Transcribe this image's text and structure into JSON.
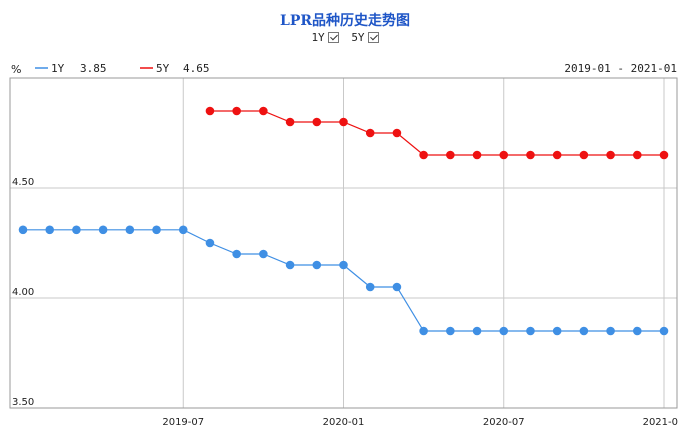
{
  "title": "LPR品种历史走势图",
  "toggles": [
    {
      "label": "1Y",
      "checked": true
    },
    {
      "label": "5Y",
      "checked": true
    }
  ],
  "unit_label": "%",
  "legend": [
    {
      "name": "1Y",
      "value": "3.85",
      "color": "#3f8fe4"
    },
    {
      "name": "5Y",
      "value": "4.65",
      "color": "#ee1111"
    }
  ],
  "date_range": "2019-01 - 2021-01",
  "chart_data": {
    "type": "line",
    "ylim": [
      3.5,
      5.0
    ],
    "y_ticks": [
      {
        "value": 3.5,
        "label": "3.50"
      },
      {
        "value": 4.0,
        "label": "4.00"
      },
      {
        "value": 4.5,
        "label": "4.50"
      }
    ],
    "x_range": [
      "2019-01",
      "2021-01"
    ],
    "x_ticks": [
      {
        "x": "2019-07",
        "label": "2019-07"
      },
      {
        "x": "2020-01",
        "label": "2020-01"
      },
      {
        "x": "2020-07",
        "label": "2020-07"
      },
      {
        "x": "2021-01",
        "label": "2021-0"
      }
    ],
    "grid": true,
    "series": [
      {
        "name": "1Y",
        "color": "#3f8fe4",
        "points": [
          {
            "x": "2019-01",
            "y": 4.31
          },
          {
            "x": "2019-02",
            "y": 4.31
          },
          {
            "x": "2019-03",
            "y": 4.31
          },
          {
            "x": "2019-04",
            "y": 4.31
          },
          {
            "x": "2019-05",
            "y": 4.31
          },
          {
            "x": "2019-06",
            "y": 4.31
          },
          {
            "x": "2019-07",
            "y": 4.31
          },
          {
            "x": "2019-08",
            "y": 4.25
          },
          {
            "x": "2019-09",
            "y": 4.2
          },
          {
            "x": "2019-10",
            "y": 4.2
          },
          {
            "x": "2019-11",
            "y": 4.15
          },
          {
            "x": "2019-12",
            "y": 4.15
          },
          {
            "x": "2020-01",
            "y": 4.15
          },
          {
            "x": "2020-02",
            "y": 4.05
          },
          {
            "x": "2020-03",
            "y": 4.05
          },
          {
            "x": "2020-04",
            "y": 3.85
          },
          {
            "x": "2020-05",
            "y": 3.85
          },
          {
            "x": "2020-06",
            "y": 3.85
          },
          {
            "x": "2020-07",
            "y": 3.85
          },
          {
            "x": "2020-08",
            "y": 3.85
          },
          {
            "x": "2020-09",
            "y": 3.85
          },
          {
            "x": "2020-10",
            "y": 3.85
          },
          {
            "x": "2020-11",
            "y": 3.85
          },
          {
            "x": "2020-12",
            "y": 3.85
          },
          {
            "x": "2021-01",
            "y": 3.85
          }
        ]
      },
      {
        "name": "5Y",
        "color": "#ee1111",
        "points": [
          {
            "x": "2019-08",
            "y": 4.85
          },
          {
            "x": "2019-09",
            "y": 4.85
          },
          {
            "x": "2019-10",
            "y": 4.85
          },
          {
            "x": "2019-11",
            "y": 4.8
          },
          {
            "x": "2019-12",
            "y": 4.8
          },
          {
            "x": "2020-01",
            "y": 4.8
          },
          {
            "x": "2020-02",
            "y": 4.75
          },
          {
            "x": "2020-03",
            "y": 4.75
          },
          {
            "x": "2020-04",
            "y": 4.65
          },
          {
            "x": "2020-05",
            "y": 4.65
          },
          {
            "x": "2020-06",
            "y": 4.65
          },
          {
            "x": "2020-07",
            "y": 4.65
          },
          {
            "x": "2020-08",
            "y": 4.65
          },
          {
            "x": "2020-09",
            "y": 4.65
          },
          {
            "x": "2020-10",
            "y": 4.65
          },
          {
            "x": "2020-11",
            "y": 4.65
          },
          {
            "x": "2020-12",
            "y": 4.65
          },
          {
            "x": "2021-01",
            "y": 4.65
          }
        ]
      }
    ]
  }
}
